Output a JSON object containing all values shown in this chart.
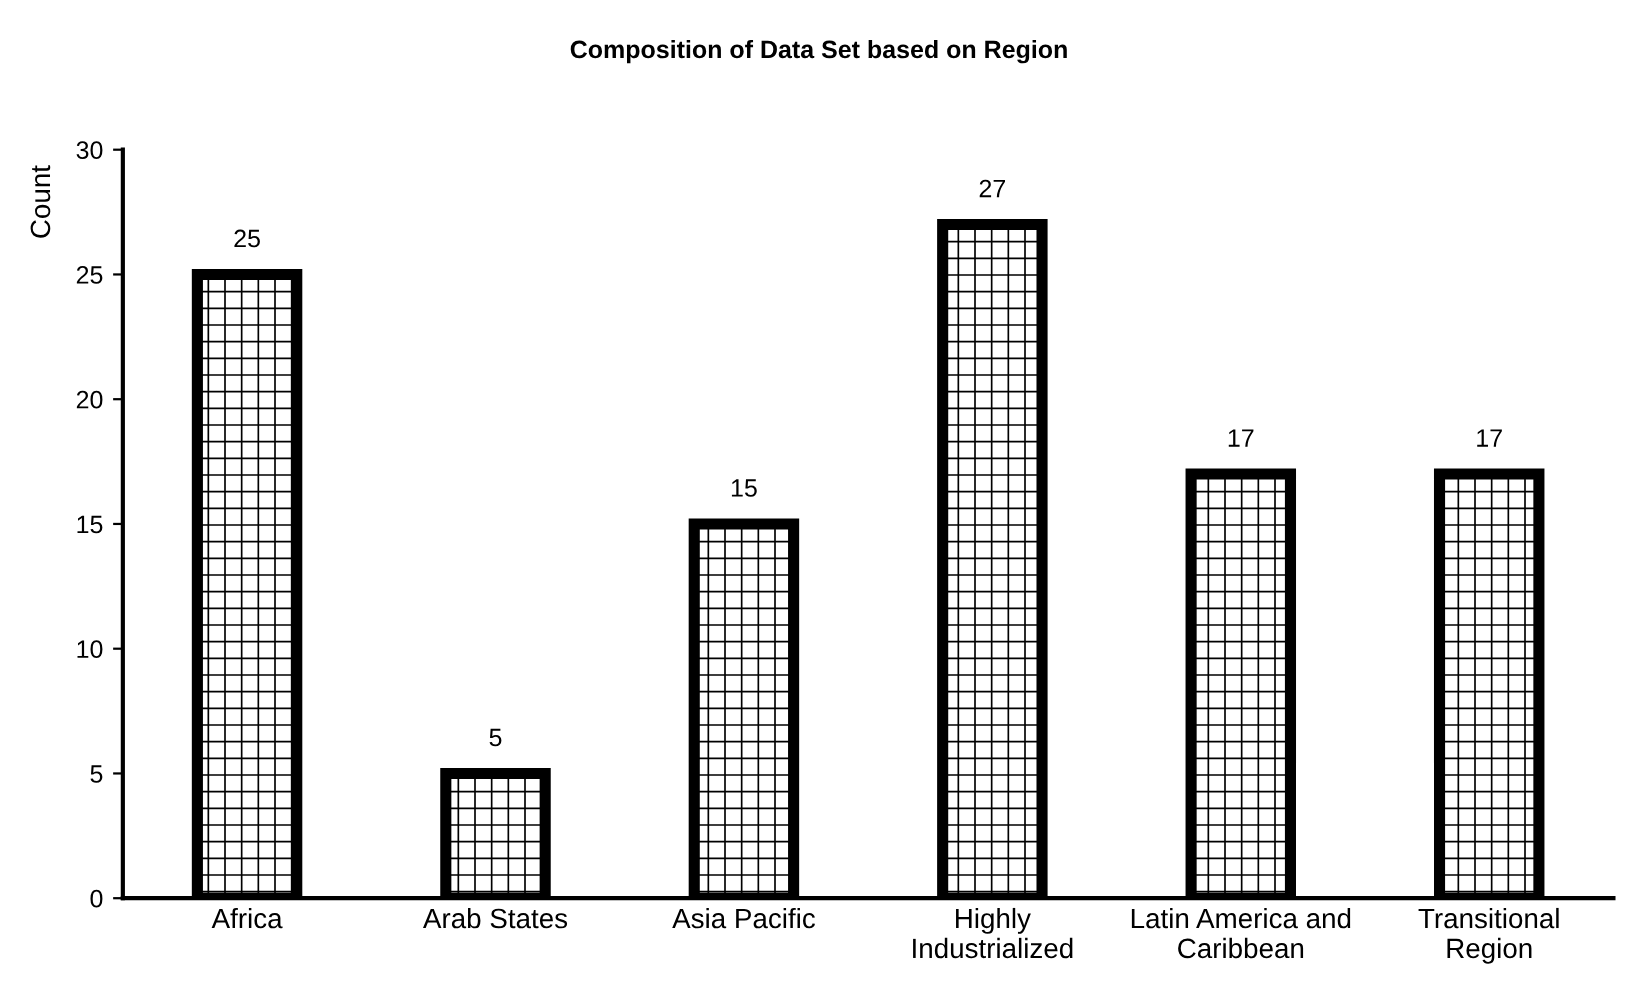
{
  "chart_data": {
    "type": "bar",
    "title": "Composition of Data Set based on Region",
    "ylabel": "Count",
    "categories": [
      "Africa",
      "Arab States",
      "Asia Pacific",
      "Highly\nIndustrialized",
      "Latin America and\nCaribbean",
      "Transitional\nRegion"
    ],
    "values": [
      25,
      5,
      15,
      27,
      17,
      17
    ],
    "color": "#000000",
    "ylim": [
      0,
      30
    ],
    "yticks": [
      0,
      5,
      10,
      15,
      20,
      25,
      30
    ],
    "data_labels": true,
    "grid": false
  }
}
